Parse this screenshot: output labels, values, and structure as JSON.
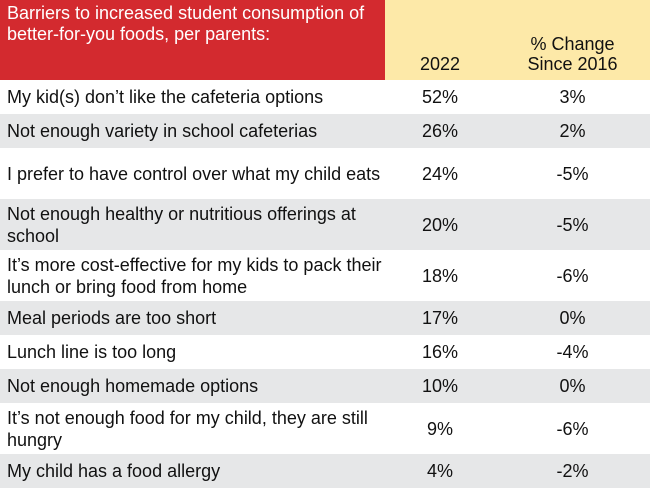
{
  "chart_data": {
    "type": "table",
    "title": "Barriers to increased student consumption of better-for-you foods, per parents:",
    "columns": [
      "2022",
      "% Change Since 2016"
    ],
    "rows": [
      {
        "label": "My kid(s) don’t like the cafeteria options",
        "y2022": "52%",
        "change": "3%"
      },
      {
        "label": "Not enough variety in school cafeterias",
        "y2022": "26%",
        "change": "2%"
      },
      {
        "label": "I prefer to have control over what my child eats",
        "y2022": "24%",
        "change": "-5%"
      },
      {
        "label": "Not enough healthy or nutritious offerings at school",
        "y2022": "20%",
        "change": "-5%"
      },
      {
        "label": "It’s more cost-effective for my kids to pack their lunch or bring food from home",
        "y2022": "18%",
        "change": "-6%"
      },
      {
        "label": "Meal periods are too short",
        "y2022": "17%",
        "change": "0%"
      },
      {
        "label": "Lunch line is too long",
        "y2022": "16%",
        "change": "-4%"
      },
      {
        "label": "Not enough homemade options",
        "y2022": "10%",
        "change": "0%"
      },
      {
        "label": "It’s not enough food for my child, they are still hungry",
        "y2022": "9%",
        "change": "-6%"
      },
      {
        "label": "My child has a food allergy",
        "y2022": "4%",
        "change": "-2%"
      }
    ]
  }
}
